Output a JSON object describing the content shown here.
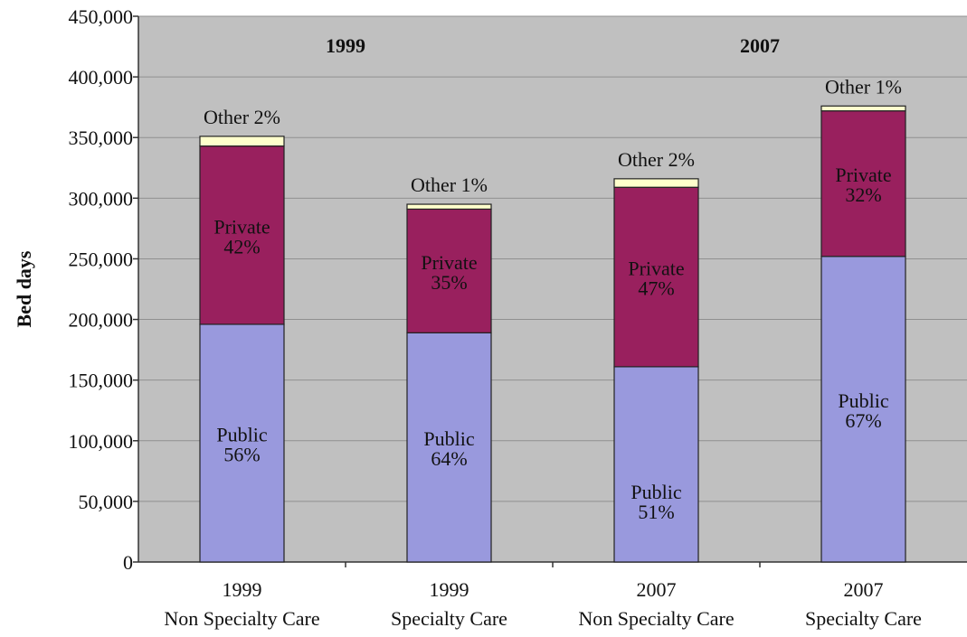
{
  "chart_data": {
    "type": "bar",
    "stacked": true,
    "ylabel": "Bed days",
    "ylim": [
      0,
      450000
    ],
    "yticks": [
      0,
      50000,
      100000,
      150000,
      200000,
      250000,
      300000,
      350000,
      400000,
      450000
    ],
    "ytick_labels": [
      "0",
      "50,000",
      "100,000",
      "150,000",
      "200,000",
      "250,000",
      "300,000",
      "350,000",
      "400,000",
      "450,000"
    ],
    "grid": true,
    "group_labels": [
      "1999",
      "2007"
    ],
    "categories": [
      {
        "line1": "1999",
        "line2": "Non Specialty Care"
      },
      {
        "line1": "1999",
        "line2": "Specialty Care"
      },
      {
        "line1": "2007",
        "line2": "Non Specialty Care"
      },
      {
        "line1": "2007",
        "line2": "Specialty Care"
      }
    ],
    "series": [
      {
        "name": "Public",
        "color": "#9999dd",
        "values": [
          196000,
          189000,
          161000,
          252000
        ],
        "pct_labels": [
          "56%",
          "64%",
          "51%",
          "67%"
        ]
      },
      {
        "name": "Private",
        "color": "#99205e",
        "values": [
          147000,
          102000,
          148000,
          120000
        ],
        "pct_labels": [
          "42%",
          "35%",
          "47%",
          "32%"
        ]
      },
      {
        "name": "Other",
        "color": "#ffffcc",
        "values": [
          8000,
          4000,
          7000,
          4000
        ],
        "pct_labels": [
          "2%",
          "1%",
          "2%",
          "1%"
        ]
      }
    ],
    "colors": {
      "plot_background": "#c0c0c0",
      "gridline": "#909090",
      "bar_outline": "#222222"
    }
  }
}
